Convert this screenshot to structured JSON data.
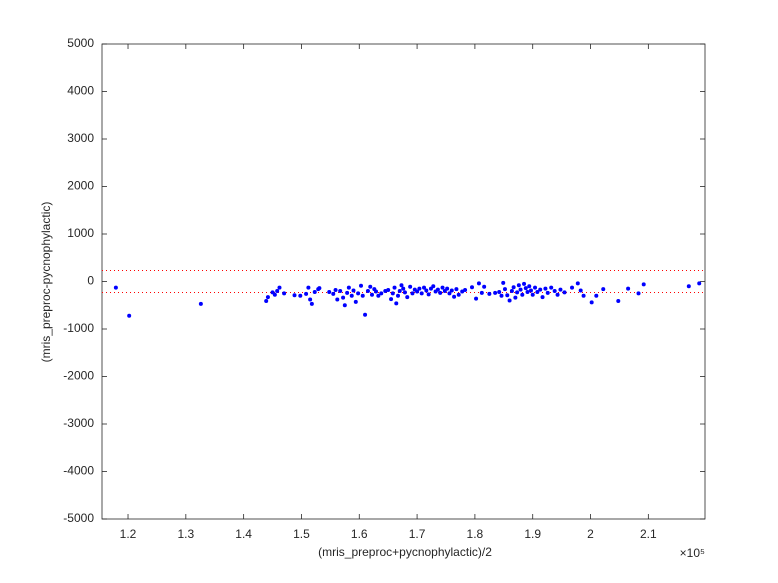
{
  "chart_data": {
    "type": "scatter",
    "x_label": "(mris_preproc+pycnophylactic)/2",
    "y_label": "(mris_preproc-pycnophylactic)",
    "x_multiplier": "×10⁵",
    "color": "#0000ff",
    "reference_lines": [
      232,
      -232
    ],
    "reference_color": "#ff0000",
    "xlim": [
      115500,
      219800
    ],
    "xticks": [
      {
        "value": 120000,
        "label": "1.2"
      },
      {
        "value": 130000,
        "label": "1.3"
      },
      {
        "value": 140000,
        "label": "1.4"
      },
      {
        "value": 150000,
        "label": "1.5"
      },
      {
        "value": 160000,
        "label": "1.6"
      },
      {
        "value": 170000,
        "label": "1.7"
      },
      {
        "value": 180000,
        "label": "1.8"
      },
      {
        "value": 190000,
        "label": "1.9"
      },
      {
        "value": 200000,
        "label": "2"
      },
      {
        "value": 210000,
        "label": "2.1"
      }
    ],
    "ylim": [
      -5000,
      5000
    ],
    "yticks": [
      -5000,
      -4000,
      -3000,
      -2000,
      -1000,
      0,
      1000,
      2000,
      3000,
      4000,
      5000
    ],
    "x": [
      117900,
      120200,
      132600,
      143900,
      144200,
      145000,
      145400,
      145800,
      146200,
      147000,
      148800,
      149800,
      150800,
      151200,
      151500,
      151800,
      152300,
      152900,
      153100,
      154800,
      155500,
      155900,
      156200,
      156700,
      157200,
      157500,
      157900,
      158200,
      158700,
      159000,
      159400,
      159800,
      160300,
      160600,
      161000,
      161500,
      161900,
      162200,
      162600,
      162900,
      163300,
      163800,
      164500,
      165000,
      165500,
      165800,
      166100,
      166400,
      166700,
      167000,
      167300,
      167600,
      167900,
      168300,
      168800,
      169200,
      169600,
      170000,
      170400,
      170800,
      171200,
      171600,
      172000,
      172400,
      172800,
      173200,
      173600,
      174000,
      174400,
      174800,
      175200,
      175600,
      176000,
      176400,
      176800,
      177200,
      177800,
      178300,
      179500,
      180200,
      180700,
      181200,
      181600,
      182500,
      183500,
      184200,
      184600,
      184900,
      185200,
      185600,
      186000,
      186400,
      186700,
      187000,
      187300,
      187600,
      187900,
      188200,
      188500,
      188800,
      189100,
      189400,
      189700,
      190000,
      190400,
      190800,
      191300,
      191700,
      192200,
      192600,
      193200,
      193800,
      194300,
      194800,
      195500,
      196800,
      197800,
      198300,
      198800,
      200200,
      201000,
      202200,
      204800,
      206500,
      208300,
      209200,
      217000,
      218800
    ],
    "values": [
      -130,
      -720,
      -470,
      -410,
      -330,
      -230,
      -280,
      -200,
      -130,
      -250,
      -290,
      -300,
      -260,
      -130,
      -380,
      -470,
      -220,
      -160,
      -140,
      -220,
      -260,
      -180,
      -380,
      -200,
      -340,
      -500,
      -240,
      -130,
      -300,
      -190,
      -430,
      -250,
      -90,
      -300,
      -700,
      -200,
      -110,
      -280,
      -160,
      -210,
      -300,
      -250,
      -200,
      -180,
      -370,
      -250,
      -130,
      -460,
      -300,
      -200,
      -80,
      -150,
      -230,
      -330,
      -110,
      -250,
      -170,
      -210,
      -150,
      -250,
      -130,
      -190,
      -270,
      -150,
      -100,
      -210,
      -170,
      -240,
      -130,
      -200,
      -150,
      -250,
      -190,
      -320,
      -160,
      -280,
      -210,
      -180,
      -120,
      -360,
      -40,
      -240,
      -110,
      -260,
      -240,
      -220,
      -300,
      -30,
      -160,
      -290,
      -400,
      -200,
      -120,
      -340,
      -230,
      -80,
      -170,
      -280,
      -50,
      -140,
      -220,
      -100,
      -190,
      -280,
      -130,
      -220,
      -170,
      -330,
      -150,
      -240,
      -130,
      -200,
      -280,
      -170,
      -230,
      -130,
      -40,
      -190,
      -300,
      -440,
      -300,
      -160,
      -410,
      -150,
      -250,
      -60,
      -100,
      -40
    ]
  }
}
